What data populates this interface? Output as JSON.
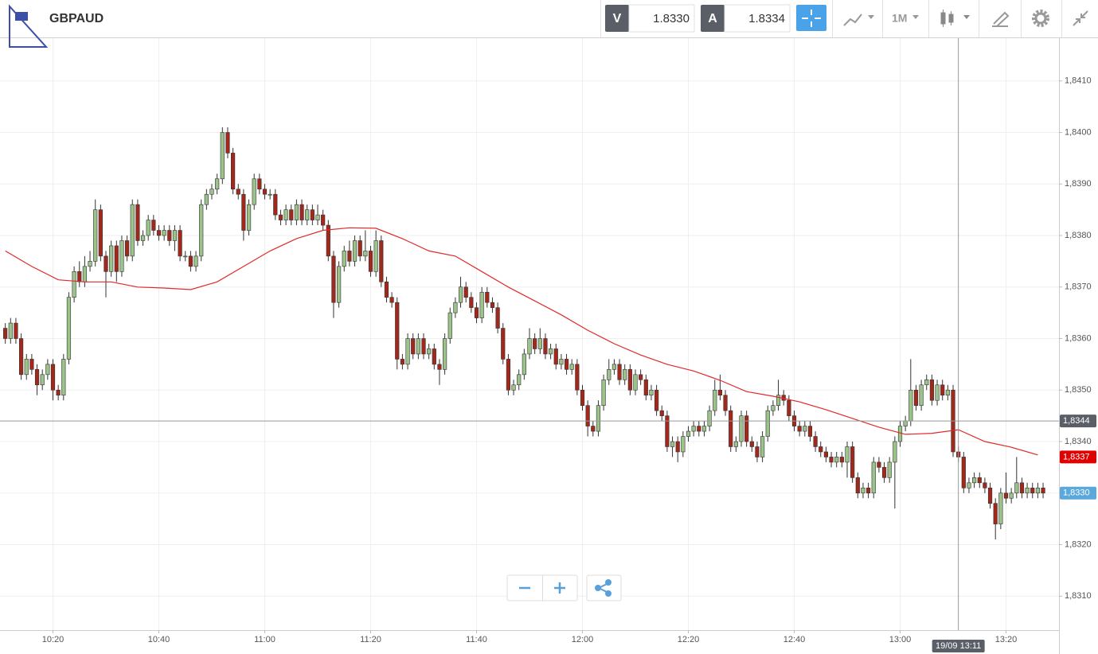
{
  "toolbar": {
    "symbol": "GBPAUD",
    "bid_label": "V",
    "bid": "1.8330",
    "ask_label": "A",
    "ask": "1.8334",
    "interval": "1M"
  },
  "chart_data": {
    "type": "candlestick",
    "grid": true,
    "up_color": "#9cc38a",
    "down_color": "#a3281c",
    "wick_color": "#333333",
    "xlim": [
      "10:10",
      "13:30"
    ],
    "xticks": [
      "10:20",
      "10:40",
      "11:00",
      "11:20",
      "11:40",
      "12:00",
      "12:20",
      "12:40",
      "13:00",
      "13:20"
    ],
    "ylim": [
      1.83034,
      1.84183
    ],
    "yticks": [
      {
        "value": 1.831,
        "label": "1,8310"
      },
      {
        "value": 1.832,
        "label": "1,8320"
      },
      {
        "value": 1.833,
        "label": "1,8330"
      },
      {
        "value": 1.834,
        "label": "1,8340"
      },
      {
        "value": 1.835,
        "label": "1,8350"
      },
      {
        "value": 1.836,
        "label": "1,8360"
      },
      {
        "value": 1.837,
        "label": "1,8370"
      },
      {
        "value": 1.838,
        "label": "1,8380"
      },
      {
        "value": 1.839,
        "label": "1,8390"
      },
      {
        "value": 1.84,
        "label": "1,8400"
      },
      {
        "value": 1.841,
        "label": "1,8410"
      }
    ],
    "x": [
      "10:11",
      "10:12",
      "10:13",
      "10:14",
      "10:15",
      "10:16",
      "10:17",
      "10:18",
      "10:19",
      "10:20",
      "10:21",
      "10:22",
      "10:23",
      "10:24",
      "10:25",
      "10:26",
      "10:27",
      "10:28",
      "10:29",
      "10:30",
      "10:31",
      "10:32",
      "10:33",
      "10:34",
      "10:35",
      "10:36",
      "10:37",
      "10:38",
      "10:39",
      "10:40",
      "10:41",
      "10:42",
      "10:43",
      "10:44",
      "10:45",
      "10:46",
      "10:47",
      "10:48",
      "10:49",
      "10:50",
      "10:51",
      "10:52",
      "10:53",
      "10:54",
      "10:55",
      "10:56",
      "10:57",
      "10:58",
      "10:59",
      "11:00",
      "11:01",
      "11:02",
      "11:03",
      "11:04",
      "11:05",
      "11:06",
      "11:07",
      "11:08",
      "11:09",
      "11:10",
      "11:11",
      "11:12",
      "11:13",
      "11:14",
      "11:15",
      "11:16",
      "11:17",
      "11:18",
      "11:19",
      "11:20",
      "11:21",
      "11:22",
      "11:23",
      "11:24",
      "11:25",
      "11:26",
      "11:27",
      "11:28",
      "11:29",
      "11:30",
      "11:31",
      "11:32",
      "11:33",
      "11:34",
      "11:35",
      "11:36",
      "11:37",
      "11:38",
      "11:39",
      "11:40",
      "11:41",
      "11:42",
      "11:43",
      "11:44",
      "11:45",
      "11:46",
      "11:47",
      "11:48",
      "11:49",
      "11:50",
      "11:51",
      "11:52",
      "11:53",
      "11:54",
      "11:55",
      "11:56",
      "11:57",
      "11:58",
      "11:59",
      "12:00",
      "12:01",
      "12:02",
      "12:03",
      "12:04",
      "12:05",
      "12:06",
      "12:07",
      "12:08",
      "12:09",
      "12:10",
      "12:11",
      "12:12",
      "12:13",
      "12:14",
      "12:15",
      "12:16",
      "12:17",
      "12:18",
      "12:19",
      "12:20",
      "12:21",
      "12:22",
      "12:23",
      "12:24",
      "12:25",
      "12:26",
      "12:27",
      "12:28",
      "12:29",
      "12:30",
      "12:31",
      "12:32",
      "12:33",
      "12:34",
      "12:35",
      "12:36",
      "12:37",
      "12:38",
      "12:39",
      "12:40",
      "12:41",
      "12:42",
      "12:43",
      "12:44",
      "12:45",
      "12:46",
      "12:47",
      "12:48",
      "12:49",
      "12:50",
      "12:51",
      "12:52",
      "12:53",
      "12:54",
      "12:55",
      "12:56",
      "12:57",
      "12:58",
      "12:59",
      "13:00",
      "13:01",
      "13:02",
      "13:03",
      "13:04",
      "13:05",
      "13:06",
      "13:07",
      "13:08",
      "13:09",
      "13:10",
      "13:11",
      "13:12",
      "13:13",
      "13:14",
      "13:15",
      "13:16",
      "13:17",
      "13:18",
      "13:19",
      "13:20",
      "13:21",
      "13:22",
      "13:23",
      "13:24",
      "13:25",
      "13:26",
      "13:27"
    ],
    "open": [
      1.8362,
      1.836,
      1.8363,
      1.836,
      1.8353,
      1.8356,
      1.8354,
      1.8351,
      1.8353,
      1.8355,
      1.835,
      1.8349,
      1.8356,
      1.8368,
      1.8373,
      1.8371,
      1.8374,
      1.8375,
      1.8385,
      1.8376,
      1.8373,
      1.8378,
      1.8373,
      1.8379,
      1.8376,
      1.8386,
      1.8379,
      1.838,
      1.8383,
      1.8381,
      1.838,
      1.8381,
      1.8379,
      1.8381,
      1.8376,
      1.8376,
      1.8374,
      1.8376,
      1.8386,
      1.8388,
      1.8389,
      1.8391,
      1.84,
      1.8396,
      1.8389,
      1.8388,
      1.8381,
      1.8386,
      1.8391,
      1.8389,
      1.8388,
      1.8388,
      1.8384,
      1.8383,
      1.8385,
      1.8383,
      1.8386,
      1.8383,
      1.8385,
      1.8383,
      1.8384,
      1.8382,
      1.8376,
      1.8367,
      1.8374,
      1.8377,
      1.8375,
      1.8379,
      1.8376,
      1.8377,
      1.8373,
      1.8379,
      1.8371,
      1.8368,
      1.8367,
      1.8356,
      1.8355,
      1.836,
      1.8357,
      1.836,
      1.8357,
      1.8358,
      1.8355,
      1.8354,
      1.836,
      1.8365,
      1.8367,
      1.837,
      1.8368,
      1.8366,
      1.8364,
      1.8369,
      1.8367,
      1.8366,
      1.8362,
      1.8356,
      1.835,
      1.8351,
      1.8353,
      1.8357,
      1.836,
      1.8358,
      1.836,
      1.8357,
      1.8358,
      1.8355,
      1.8356,
      1.8354,
      1.8355,
      1.835,
      1.8347,
      1.8343,
      1.8342,
      1.8347,
      1.8352,
      1.8354,
      1.8355,
      1.8352,
      1.8354,
      1.835,
      1.8353,
      1.8352,
      1.8349,
      1.835,
      1.8346,
      1.8345,
      1.8339,
      1.834,
      1.8338,
      1.8341,
      1.8342,
      1.8343,
      1.8342,
      1.8343,
      1.8346,
      1.835,
      1.8349,
      1.8346,
      1.8339,
      1.834,
      1.8345,
      1.834,
      1.8339,
      1.8337,
      1.8341,
      1.8346,
      1.8347,
      1.8349,
      1.8348,
      1.8345,
      1.8343,
      1.8342,
      1.8343,
      1.8341,
      1.8339,
      1.8338,
      1.8337,
      1.8336,
      1.8337,
      1.8336,
      1.8339,
      1.8333,
      1.833,
      1.8331,
      1.833,
      1.8336,
      1.8335,
      1.8333,
      1.8336,
      1.834,
      1.8343,
      1.8344,
      1.835,
      1.8347,
      1.8351,
      1.8352,
      1.8348,
      1.8351,
      1.8349,
      1.835,
      1.8338,
      1.8337,
      1.8331,
      1.8332,
      1.8333,
      1.8332,
      1.8331,
      1.8328,
      1.8324,
      1.833,
      1.8329,
      1.833,
      1.8332,
      1.833,
      1.8331,
      1.833,
      1.8331
    ],
    "high": [
      1.8363,
      1.8364,
      1.8364,
      1.8361,
      1.8357,
      1.8357,
      1.8355,
      1.8354,
      1.8356,
      1.8356,
      1.8351,
      1.8357,
      1.8369,
      1.8374,
      1.8375,
      1.8376,
      1.8377,
      1.8387,
      1.8386,
      1.8377,
      1.8379,
      1.8379,
      1.838,
      1.838,
      1.8387,
      1.8387,
      1.8381,
      1.8384,
      1.8384,
      1.8382,
      1.8382,
      1.8382,
      1.8382,
      1.8382,
      1.8377,
      1.8377,
      1.8377,
      1.8387,
      1.8389,
      1.839,
      1.8392,
      1.8401,
      1.8401,
      1.8397,
      1.839,
      1.8389,
      1.8387,
      1.8392,
      1.8392,
      1.839,
      1.8389,
      1.8389,
      1.8385,
      1.8386,
      1.8386,
      1.8387,
      1.8387,
      1.8386,
      1.8386,
      1.8386,
      1.8385,
      1.8383,
      1.8377,
      1.8375,
      1.8378,
      1.8379,
      1.838,
      1.838,
      1.8381,
      1.8378,
      1.8381,
      1.838,
      1.8372,
      1.8369,
      1.8368,
      1.8357,
      1.8361,
      1.8361,
      1.8361,
      1.8361,
      1.8359,
      1.8359,
      1.8356,
      1.8361,
      1.8366,
      1.8368,
      1.8372,
      1.8371,
      1.8369,
      1.8367,
      1.837,
      1.837,
      1.8368,
      1.8367,
      1.8363,
      1.8357,
      1.8352,
      1.8354,
      1.8358,
      1.8362,
      1.8361,
      1.8362,
      1.8361,
      1.8359,
      1.8359,
      1.8357,
      1.8357,
      1.8356,
      1.8356,
      1.8351,
      1.8348,
      1.8344,
      1.8348,
      1.8353,
      1.8356,
      1.8356,
      1.8356,
      1.8355,
      1.8355,
      1.8354,
      1.8354,
      1.8353,
      1.8351,
      1.8351,
      1.8347,
      1.8346,
      1.8341,
      1.8341,
      1.8342,
      1.8343,
      1.8344,
      1.8344,
      1.8344,
      1.8347,
      1.8352,
      1.8353,
      1.835,
      1.8347,
      1.8341,
      1.8346,
      1.8346,
      1.8341,
      1.834,
      1.8342,
      1.8347,
      1.8348,
      1.8352,
      1.835,
      1.8349,
      1.8346,
      1.8344,
      1.8344,
      1.8344,
      1.8342,
      1.834,
      1.8339,
      1.8338,
      1.8338,
      1.8338,
      1.834,
      1.834,
      1.8334,
      1.8332,
      1.8332,
      1.8337,
      1.8337,
      1.8336,
      1.8337,
      1.8341,
      1.8344,
      1.8345,
      1.8356,
      1.8351,
      1.8352,
      1.8353,
      1.8353,
      1.8352,
      1.8352,
      1.8351,
      1.8351,
      1.8339,
      1.8338,
      1.8333,
      1.8334,
      1.8334,
      1.8333,
      1.8332,
      1.8329,
      1.8331,
      1.8334,
      1.8331,
      1.8337,
      1.8333,
      1.8332,
      1.8332,
      1.8332,
      1.8332
    ],
    "low": [
      1.8359,
      1.8359,
      1.8359,
      1.8352,
      1.8352,
      1.8353,
      1.8349,
      1.835,
      1.8352,
      1.8348,
      1.8348,
      1.8348,
      1.8355,
      1.8367,
      1.837,
      1.837,
      1.8373,
      1.8374,
      1.8375,
      1.8368,
      1.8372,
      1.8371,
      1.8372,
      1.8375,
      1.8375,
      1.8378,
      1.8378,
      1.8379,
      1.838,
      1.8379,
      1.8379,
      1.8378,
      1.8377,
      1.8375,
      1.8375,
      1.8373,
      1.8373,
      1.8375,
      1.8385,
      1.8387,
      1.8388,
      1.839,
      1.8395,
      1.8388,
      1.8387,
      1.8379,
      1.838,
      1.8385,
      1.8388,
      1.8387,
      1.8387,
      1.8383,
      1.8382,
      1.8382,
      1.8382,
      1.8382,
      1.8382,
      1.8382,
      1.8382,
      1.8382,
      1.8381,
      1.8375,
      1.8364,
      1.8366,
      1.8373,
      1.8374,
      1.8374,
      1.8375,
      1.8375,
      1.8372,
      1.8372,
      1.837,
      1.8367,
      1.8366,
      1.8354,
      1.8354,
      1.8354,
      1.8356,
      1.8356,
      1.8356,
      1.8356,
      1.8354,
      1.8351,
      1.8353,
      1.8359,
      1.8364,
      1.8366,
      1.8367,
      1.8365,
      1.8363,
      1.8363,
      1.8366,
      1.8365,
      1.8361,
      1.8355,
      1.8349,
      1.8349,
      1.835,
      1.8352,
      1.8356,
      1.8357,
      1.8357,
      1.8356,
      1.8356,
      1.8354,
      1.8354,
      1.8353,
      1.8353,
      1.8349,
      1.8346,
      1.8341,
      1.8341,
      1.8341,
      1.8346,
      1.8351,
      1.8353,
      1.8351,
      1.8351,
      1.8349,
      1.8349,
      1.8351,
      1.8348,
      1.8348,
      1.8345,
      1.8344,
      1.8338,
      1.8337,
      1.8336,
      1.8337,
      1.834,
      1.8341,
      1.8341,
      1.8341,
      1.8342,
      1.8345,
      1.8348,
      1.8345,
      1.8338,
      1.8338,
      1.8339,
      1.8339,
      1.8338,
      1.8336,
      1.8336,
      1.834,
      1.8345,
      1.8346,
      1.8347,
      1.8344,
      1.8342,
      1.8341,
      1.8341,
      1.834,
      1.8338,
      1.8337,
      1.8336,
      1.8335,
      1.8335,
      1.8335,
      1.8333,
      1.8332,
      1.8329,
      1.8329,
      1.8329,
      1.8329,
      1.8334,
      1.8332,
      1.8332,
      1.8327,
      1.8339,
      1.8342,
      1.8343,
      1.8346,
      1.8346,
      1.835,
      1.8347,
      1.8347,
      1.8348,
      1.8348,
      1.8337,
      1.8336,
      1.833,
      1.833,
      1.8331,
      1.8331,
      1.833,
      1.8327,
      1.8321,
      1.8323,
      1.8328,
      1.8328,
      1.8329,
      1.8329,
      1.8329,
      1.8329,
      1.8329,
      1.8329
    ],
    "close": [
      1.836,
      1.8363,
      1.836,
      1.8353,
      1.8356,
      1.8354,
      1.8351,
      1.8353,
      1.8355,
      1.835,
      1.8349,
      1.8356,
      1.8368,
      1.8373,
      1.8371,
      1.8374,
      1.8375,
      1.8385,
      1.8376,
      1.8373,
      1.8378,
      1.8373,
      1.8379,
      1.8376,
      1.8386,
      1.8379,
      1.838,
      1.8383,
      1.8381,
      1.838,
      1.8381,
      1.8379,
      1.8381,
      1.8376,
      1.8376,
      1.8374,
      1.8376,
      1.8386,
      1.8388,
      1.8389,
      1.8391,
      1.84,
      1.8396,
      1.8389,
      1.8388,
      1.8381,
      1.8386,
      1.8391,
      1.8389,
      1.8388,
      1.8388,
      1.8384,
      1.8383,
      1.8385,
      1.8383,
      1.8386,
      1.8383,
      1.8385,
      1.8383,
      1.8384,
      1.8382,
      1.8376,
      1.8367,
      1.8374,
      1.8377,
      1.8375,
      1.8379,
      1.8376,
      1.8377,
      1.8373,
      1.8379,
      1.8371,
      1.8368,
      1.8367,
      1.8356,
      1.8355,
      1.836,
      1.8357,
      1.836,
      1.8357,
      1.8358,
      1.8355,
      1.8354,
      1.836,
      1.8365,
      1.8367,
      1.837,
      1.8368,
      1.8366,
      1.8364,
      1.8369,
      1.8367,
      1.8366,
      1.8362,
      1.8356,
      1.835,
      1.8351,
      1.8353,
      1.8357,
      1.836,
      1.8358,
      1.836,
      1.8357,
      1.8358,
      1.8355,
      1.8356,
      1.8354,
      1.8355,
      1.835,
      1.8347,
      1.8343,
      1.8342,
      1.8347,
      1.8352,
      1.8354,
      1.8355,
      1.8352,
      1.8354,
      1.835,
      1.8353,
      1.8352,
      1.8349,
      1.835,
      1.8346,
      1.8345,
      1.8339,
      1.834,
      1.8338,
      1.8341,
      1.8342,
      1.8343,
      1.8342,
      1.8343,
      1.8346,
      1.835,
      1.8349,
      1.8346,
      1.8339,
      1.834,
      1.8345,
      1.834,
      1.8339,
      1.8337,
      1.8341,
      1.8346,
      1.8347,
      1.8349,
      1.8348,
      1.8345,
      1.8343,
      1.8342,
      1.8343,
      1.8341,
      1.8339,
      1.8338,
      1.8337,
      1.8336,
      1.8337,
      1.8336,
      1.8339,
      1.8333,
      1.833,
      1.8331,
      1.833,
      1.8336,
      1.8335,
      1.8333,
      1.8336,
      1.834,
      1.8343,
      1.8344,
      1.835,
      1.8347,
      1.8351,
      1.8352,
      1.8348,
      1.8351,
      1.8349,
      1.835,
      1.8338,
      1.8337,
      1.8331,
      1.8332,
      1.8333,
      1.8332,
      1.8331,
      1.8328,
      1.8324,
      1.833,
      1.8329,
      1.833,
      1.8332,
      1.833,
      1.8331,
      1.833,
      1.8331,
      1.833
    ],
    "ma": {
      "color": "#e02a2a",
      "x": [
        "10:11",
        "10:16",
        "10:21",
        "10:26",
        "10:31",
        "10:36",
        "10:41",
        "10:46",
        "10:51",
        "10:56",
        "11:01",
        "11:06",
        "11:11",
        "11:16",
        "11:21",
        "11:26",
        "11:31",
        "11:36",
        "11:41",
        "11:46",
        "11:51",
        "11:56",
        "12:01",
        "12:06",
        "12:11",
        "12:16",
        "12:21",
        "12:26",
        "12:31",
        "12:36",
        "12:41",
        "12:46",
        "12:51",
        "12:56",
        "13:01",
        "13:06",
        "13:11",
        "13:16",
        "13:21",
        "13:26"
      ],
      "values": [
        1.8377,
        1.8374,
        1.83714,
        1.8371,
        1.8371,
        1.837,
        1.83698,
        1.83695,
        1.8371,
        1.8374,
        1.8377,
        1.83794,
        1.8381,
        1.83815,
        1.83814,
        1.83794,
        1.8377,
        1.8376,
        1.8373,
        1.837,
        1.83673,
        1.83646,
        1.83616,
        1.8359,
        1.83568,
        1.8355,
        1.83537,
        1.83519,
        1.83497,
        1.83488,
        1.83477,
        1.83462,
        1.83445,
        1.83428,
        1.83414,
        1.83416,
        1.83423,
        1.834,
        1.83389,
        1.83374
      ]
    },
    "crosshair": {
      "x": "13:11",
      "x_label": "19/09 13:11",
      "y": 1.8344,
      "y_label": "1,8344"
    },
    "ma_last": {
      "value": 1.8337,
      "label": "1,8337"
    },
    "last_price": {
      "value": 1.833,
      "label": "1,8330"
    }
  }
}
